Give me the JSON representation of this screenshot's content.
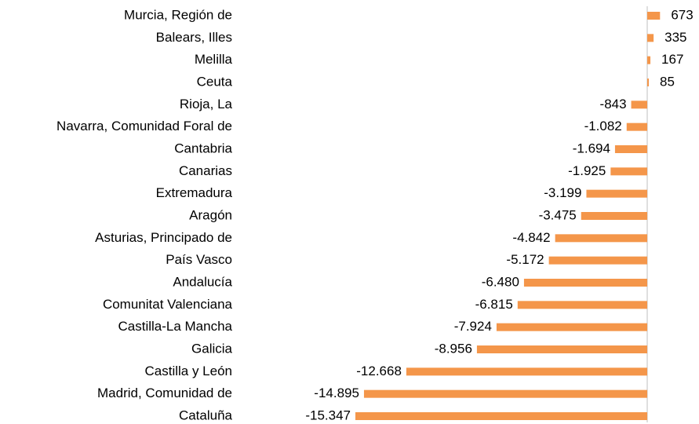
{
  "chart_data": {
    "type": "bar",
    "orientation": "horizontal",
    "color": "#f4964a",
    "categories": [
      "Murcia, Región de",
      "Balears, Illes",
      "Melilla",
      "Ceuta",
      "Rioja, La",
      "Navarra, Comunidad Foral de",
      "Cantabria",
      "Canarias",
      "Extremadura",
      "Aragón",
      "Asturias, Principado de",
      "País Vasco",
      "Andalucía",
      "Comunitat Valenciana",
      "Castilla-La Mancha",
      "Galicia",
      "Castilla y León",
      "Madrid, Comunidad de",
      "Cataluña"
    ],
    "values": [
      673,
      335,
      167,
      85,
      -843,
      -1082,
      -1694,
      -1925,
      -3199,
      -3475,
      -4842,
      -5172,
      -6480,
      -6815,
      -7924,
      -8956,
      -12668,
      -14895,
      -15347
    ],
    "value_labels": [
      "673",
      "335",
      "167",
      "85",
      "-843",
      "-1.082",
      "-1.694",
      "-1.925",
      "-3.199",
      "-3.475",
      "-4.842",
      "-5.172",
      "-6.480",
      "-6.815",
      "-7.924",
      "-8.956",
      "-12.668",
      "-14.895",
      "-15.347"
    ]
  }
}
